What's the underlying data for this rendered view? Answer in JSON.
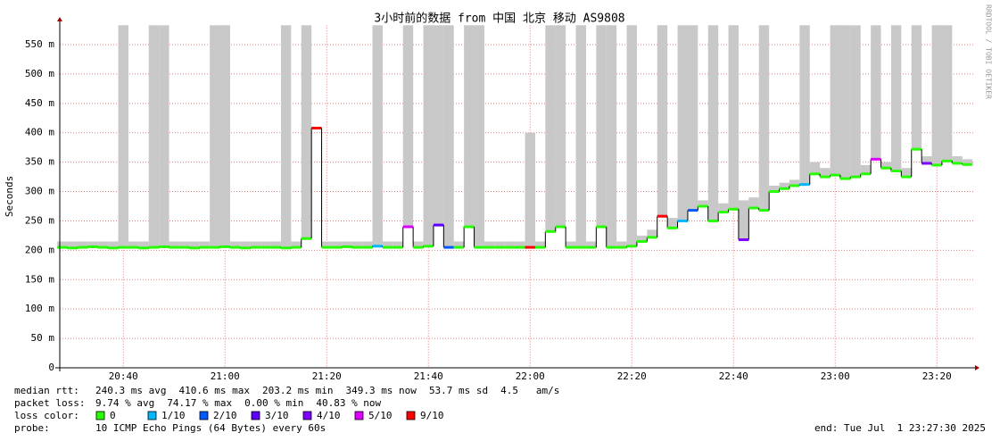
{
  "chart_data": {
    "type": "smokeping",
    "title": "3小时前的数据 from 中国 北京 移动 AS9808",
    "ylabel": "Seconds",
    "credit": "RRDTOOL / TOBI OETIKER",
    "xlim": [
      27.5,
      207.5
    ],
    "xticks": [
      {
        "value": 40,
        "label": "20:40"
      },
      {
        "value": 60,
        "label": "21:00"
      },
      {
        "value": 80,
        "label": "21:20"
      },
      {
        "value": 100,
        "label": "21:40"
      },
      {
        "value": 120,
        "label": "22:00"
      },
      {
        "value": 140,
        "label": "22:20"
      },
      {
        "value": 160,
        "label": "22:40"
      },
      {
        "value": 180,
        "label": "23:00"
      },
      {
        "value": 200,
        "label": "23:20"
      }
    ],
    "ylim": [
      0,
      583
    ],
    "yticks": [
      0,
      {
        "value": 50,
        "label": "50 m"
      },
      {
        "value": 100,
        "label": "100 m"
      },
      {
        "value": 150,
        "label": "150 m"
      },
      {
        "value": 200,
        "label": "200 m"
      },
      {
        "value": 250,
        "label": "250 m"
      },
      {
        "value": 300,
        "label": "300 m"
      },
      {
        "value": 350,
        "label": "350 m"
      },
      {
        "value": 400,
        "label": "400 m"
      },
      {
        "value": 450,
        "label": "450 m"
      },
      {
        "value": 500,
        "label": "500 m"
      },
      {
        "value": 550,
        "label": "550 m"
      }
    ],
    "grid": true,
    "smoke_color": "#c8c8c8",
    "x": [
      28,
      30,
      32,
      34,
      36,
      38,
      40,
      42,
      44,
      46,
      48,
      50,
      52,
      54,
      56,
      58,
      60,
      62,
      64,
      66,
      68,
      70,
      72,
      74,
      76,
      78,
      80,
      82,
      84,
      86,
      88,
      90,
      92,
      94,
      96,
      98,
      100,
      102,
      104,
      106,
      108,
      110,
      112,
      114,
      116,
      118,
      120,
      122,
      124,
      126,
      128,
      130,
      132,
      134,
      136,
      138,
      140,
      142,
      144,
      146,
      148,
      150,
      152,
      154,
      156,
      158,
      160,
      162,
      164,
      166,
      168,
      170,
      172,
      174,
      176,
      178,
      180,
      182,
      184,
      186,
      188,
      190,
      192,
      194,
      196,
      198,
      200,
      202,
      204,
      206
    ],
    "median": [
      205,
      204,
      205,
      206,
      205,
      204,
      205,
      205,
      204,
      205,
      206,
      205,
      205,
      204,
      205,
      205,
      206,
      205,
      204,
      205,
      205,
      205,
      204,
      205,
      220,
      408,
      205,
      205,
      206,
      205,
      205,
      207,
      205,
      205,
      240,
      205,
      207,
      243,
      205,
      205,
      240,
      205,
      205,
      205,
      205,
      205,
      205,
      205,
      232,
      240,
      205,
      205,
      205,
      240,
      205,
      205,
      207,
      215,
      222,
      258,
      238,
      250,
      268,
      275,
      250,
      265,
      270,
      218,
      272,
      268,
      300,
      305,
      310,
      312,
      330,
      325,
      328,
      322,
      325,
      330,
      355,
      340,
      335,
      325,
      372,
      348,
      345,
      352,
      348,
      346
    ],
    "loss": [
      0,
      0,
      0,
      0,
      0,
      0,
      0,
      0,
      0,
      0,
      0,
      0,
      0,
      0,
      0,
      0,
      0,
      0,
      0,
      0,
      0,
      0,
      0,
      0,
      0,
      9,
      0,
      0,
      0,
      0,
      0,
      1,
      0,
      0,
      5,
      0,
      0,
      3,
      2,
      0,
      0,
      0,
      0,
      0,
      0,
      0,
      9,
      0,
      0,
      0,
      0,
      0,
      0,
      0,
      0,
      0,
      0,
      0,
      0,
      9,
      0,
      1,
      2,
      0,
      0,
      0,
      0,
      4,
      0,
      0,
      0,
      0,
      0,
      1,
      0,
      0,
      0,
      0,
      0,
      0,
      5,
      0,
      0,
      0,
      0,
      4,
      0,
      0,
      0,
      0
    ],
    "smoke_high": [
      215,
      215,
      215,
      215,
      215,
      215,
      583,
      215,
      215,
      583,
      583,
      215,
      215,
      215,
      215,
      583,
      583,
      215,
      215,
      215,
      215,
      215,
      583,
      215,
      583,
      410,
      215,
      215,
      215,
      215,
      215,
      583,
      215,
      215,
      583,
      215,
      583,
      583,
      583,
      215,
      583,
      583,
      215,
      215,
      215,
      215,
      400,
      215,
      583,
      583,
      215,
      583,
      215,
      583,
      583,
      215,
      583,
      225,
      235,
      583,
      255,
      583,
      583,
      285,
      583,
      280,
      583,
      285,
      290,
      583,
      310,
      315,
      320,
      583,
      350,
      340,
      583,
      583,
      583,
      345,
      583,
      350,
      583,
      340,
      583,
      360,
      583,
      583,
      360,
      355
    ],
    "loss_colors": [
      {
        "value": 0,
        "label": "0",
        "color": "#26ff00"
      },
      {
        "value": 1,
        "label": "1/10",
        "color": "#00b8ff"
      },
      {
        "value": 2,
        "label": "2/10",
        "color": "#0059ff"
      },
      {
        "value": 3,
        "label": "3/10",
        "color": "#5e00ff"
      },
      {
        "value": 4,
        "label": "4/10",
        "color": "#7e00ff"
      },
      {
        "value": 5,
        "label": "5/10",
        "color": "#dd00ff"
      },
      {
        "value": 9,
        "label": "9/10",
        "color": "#ff0000"
      }
    ],
    "stats": [
      {
        "label": "median rtt:",
        "items": [
          "240.3 ms avg",
          "410.6 ms max",
          "203.2 ms min",
          "349.3 ms now",
          "53.7 ms sd",
          "4.5   am/s"
        ]
      },
      {
        "label": "packet loss:",
        "items": [
          "9.74 % avg",
          "74.17 % max",
          "0.00 % min",
          "40.83 % now"
        ]
      }
    ],
    "loss_color_label": "loss color:",
    "probe_label": "probe:",
    "probe": "10 ICMP Echo Pings (64 Bytes) every 60s",
    "end": "end: Tue Jul  1 23:27:30 2025"
  }
}
